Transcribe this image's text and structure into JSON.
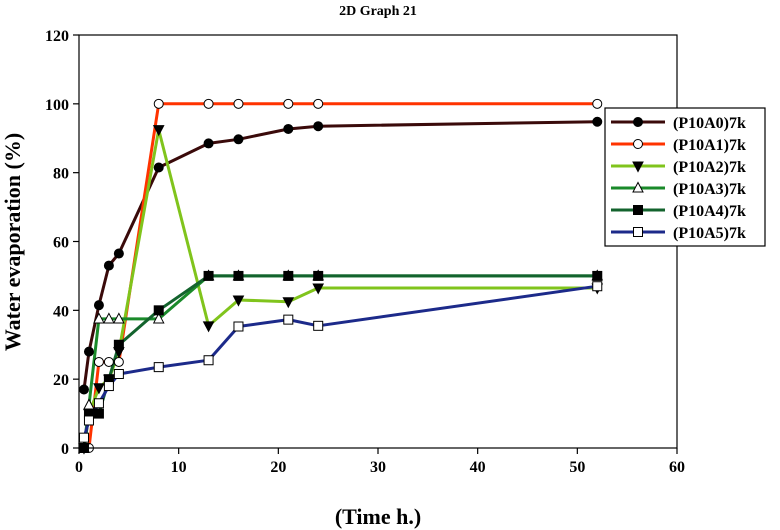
{
  "chart_data": {
    "type": "line",
    "title": "2D Graph 21",
    "xlabel": "(Time h.)",
    "ylabel": "Water evaporation (%)",
    "xlim": [
      0,
      60
    ],
    "ylim": [
      0,
      120
    ],
    "xticks": [
      0,
      10,
      20,
      30,
      40,
      50,
      60
    ],
    "yticks": [
      0,
      20,
      40,
      60,
      80,
      100,
      120
    ],
    "legend_position": "right",
    "series": [
      {
        "name": "(P10A0)7k",
        "color": "#3a0a0a",
        "marker": "circle-filled",
        "x": [
          0.5,
          1,
          2,
          3,
          4,
          8,
          13,
          16,
          21,
          24,
          52
        ],
        "y": [
          17,
          28,
          41.5,
          53,
          56.5,
          81.5,
          88.5,
          89.7,
          92.7,
          93.5,
          94.8
        ]
      },
      {
        "name": "(P10A1)7k",
        "color": "#ff3300",
        "marker": "circle-open",
        "x": [
          0.5,
          1,
          2,
          3,
          4,
          8,
          13,
          16,
          21,
          24,
          52
        ],
        "y": [
          0,
          0,
          25,
          25,
          25,
          100,
          100,
          100,
          100,
          100,
          100
        ]
      },
      {
        "name": "(P10A2)7k",
        "color": "#80c41c",
        "marker": "triangle-down-filled",
        "x": [
          0.5,
          1,
          2,
          3,
          4,
          8,
          13,
          16,
          21,
          24,
          52
        ],
        "y": [
          0,
          10,
          17.5,
          20,
          28,
          92.5,
          35.5,
          43,
          42.5,
          46.5,
          46.5
        ]
      },
      {
        "name": "(P10A3)7k",
        "color": "#1a8a2a",
        "marker": "triangle-up-open",
        "x": [
          0.5,
          1,
          2,
          3,
          4,
          8,
          13,
          16,
          21,
          24,
          52
        ],
        "y": [
          0,
          12.5,
          37.5,
          37.5,
          37.5,
          37.5,
          50,
          50,
          50,
          50,
          50
        ]
      },
      {
        "name": "(P10A4)7k",
        "color": "#13632d",
        "marker": "square-filled",
        "x": [
          0.5,
          1,
          2,
          3,
          4,
          8,
          13,
          16,
          21,
          24,
          52
        ],
        "y": [
          0,
          10,
          10,
          20,
          30,
          40,
          50,
          50,
          50,
          50,
          50
        ]
      },
      {
        "name": "(P10A5)7k",
        "color": "#1c2a8a",
        "marker": "square-open",
        "x": [
          0.5,
          1,
          2,
          3,
          4,
          8,
          13,
          16,
          21,
          24,
          52
        ],
        "y": [
          3,
          8,
          13,
          18,
          21.5,
          23.5,
          25.5,
          35.3,
          37.3,
          35.5,
          47
        ]
      }
    ]
  }
}
